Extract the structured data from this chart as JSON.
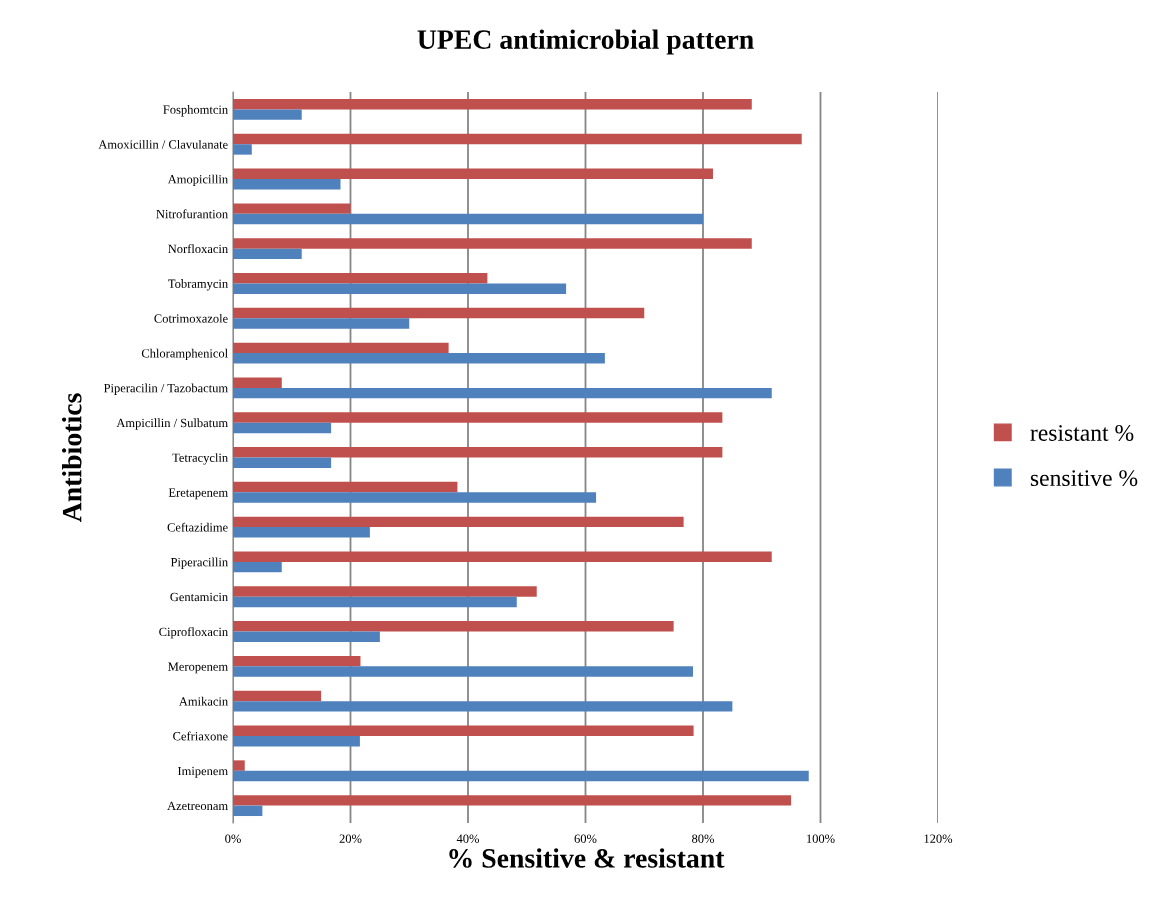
{
  "chart_data": {
    "type": "bar",
    "orientation": "horizontal",
    "title": "UPEC antimicrobial pattern",
    "xlabel": "% Sensitive & resistant",
    "ylabel": "Antibiotics",
    "categories": [
      "Fosphomtcin",
      "Amoxicillin / Clavulanate",
      "Amopicillin",
      "Nitrofurantion",
      "Norfloxacin",
      "Tobramycin",
      "Cotrimoxazole",
      "Chloramphenicol",
      "Piperacilin / Tazobactum",
      "Ampicillin / Sulbatum",
      "Tetracyclin",
      "Eretapenem",
      "Ceftazidime",
      "Piperacillin",
      "Gentamicin",
      "Ciprofloxacin",
      "Meropenem",
      "Amikacin",
      "Cefriaxone",
      "Imipenem",
      "Azetreonam"
    ],
    "series": [
      {
        "name": "resistant %",
        "color": "#c0504d",
        "values": [
          88.3,
          96.8,
          81.7,
          20,
          88.3,
          43.3,
          70,
          36.7,
          8.3,
          83.3,
          83.3,
          38.2,
          76.7,
          91.7,
          51.7,
          75,
          21.7,
          15,
          78.4,
          2,
          95
        ]
      },
      {
        "name": "sensitive %",
        "color": "#4f81bd",
        "values": [
          11.7,
          3.2,
          18.3,
          80,
          11.7,
          56.7,
          30,
          63.3,
          91.7,
          16.7,
          16.7,
          61.8,
          23.3,
          8.3,
          48.3,
          25,
          78.3,
          85,
          21.6,
          98,
          5
        ]
      }
    ],
    "xlim": [
      0,
      120
    ],
    "xticks": [
      {
        "value": 0,
        "label": "0%"
      },
      {
        "value": 20,
        "label": "20%"
      },
      {
        "value": 40,
        "label": "40%"
      },
      {
        "value": 60,
        "label": "60%"
      },
      {
        "value": 80,
        "label": "80%"
      },
      {
        "value": 100,
        "label": "100%"
      },
      {
        "value": 120,
        "label": "120%"
      }
    ],
    "grid": "x",
    "legend": "right"
  }
}
